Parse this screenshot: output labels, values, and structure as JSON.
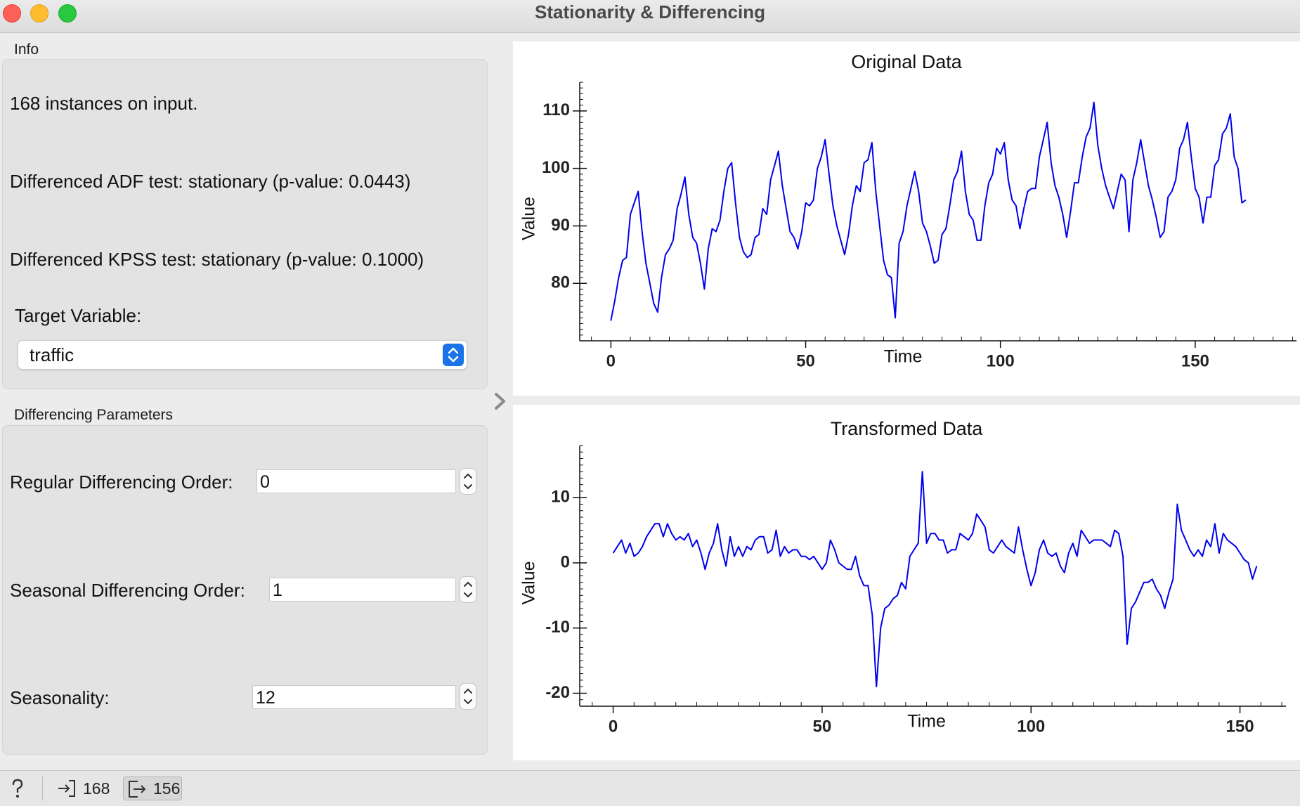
{
  "window": {
    "title": "Stationarity & Differencing"
  },
  "info": {
    "group_label": "Info",
    "instances": "168 instances on input.",
    "adf": "Differenced ADF test: stationary (p-value: 0.0443)",
    "kpss": "Differenced KPSS test: stationary (p-value: 0.1000)",
    "target_label": "Target Variable:",
    "target_value": "traffic"
  },
  "differencing": {
    "group_label": "Differencing Parameters",
    "regular_label": "Regular Differencing Order:",
    "regular_value": "0",
    "seasonal_label": "Seasonal Differencing Order:",
    "seasonal_value": "1",
    "seasonality_label": "Seasonality:",
    "seasonality_value": "12"
  },
  "status": {
    "input_count": "168",
    "output_count": "156"
  },
  "icons": {
    "help": "question-mark-icon",
    "input": "input-arrow-icon",
    "output": "output-arrow-icon",
    "splitter": "chevron-right-icon",
    "combo": "updown-chevron-icon"
  },
  "colors": {
    "line": "#0000ee",
    "combo_accent": "#1a73e8"
  },
  "chart_data": [
    {
      "type": "line",
      "title": "Original Data",
      "xlabel": "Time",
      "ylabel": "Value",
      "xticks": [
        0,
        50,
        100,
        150
      ],
      "yticks": [
        80,
        90,
        100,
        110
      ],
      "xlim": [
        -8,
        176
      ],
      "ylim": [
        70,
        115
      ],
      "series": [
        {
          "values": [
            73.5,
            77,
            81,
            84,
            84.5,
            92,
            94,
            96,
            89,
            83.5,
            80,
            76.5,
            75,
            81,
            85,
            86,
            87.5,
            93,
            95.5,
            98.5,
            92,
            88,
            87,
            83.5,
            79,
            86,
            89.5,
            89,
            91,
            96,
            100,
            101,
            94,
            88,
            85.5,
            84.5,
            85,
            88,
            88.5,
            93,
            92,
            98,
            100.5,
            103,
            97,
            93,
            89,
            88,
            86,
            89,
            94,
            93.5,
            94.5,
            100,
            102,
            105,
            99,
            93.5,
            90,
            87.5,
            85,
            88.5,
            93.5,
            97,
            96,
            101,
            101.5,
            104.5,
            96,
            90,
            84,
            81.5,
            81,
            74,
            87,
            89,
            93.5,
            96.5,
            99.5,
            96,
            90.5,
            89,
            86.5,
            83.5,
            84,
            88.5,
            89.5,
            93.5,
            98,
            99.5,
            103,
            96,
            92,
            91,
            87.5,
            87.5,
            93.5,
            97.5,
            99,
            103.5,
            102.5,
            104.5,
            98,
            94.5,
            93.5,
            89.5,
            93,
            96,
            96.5,
            96.5,
            102,
            105,
            108,
            101,
            97,
            95,
            92,
            88,
            92.5,
            97.5,
            97.5,
            102,
            105.5,
            107,
            111.5,
            104,
            100,
            97,
            95,
            93,
            96,
            99,
            98,
            89,
            98,
            101,
            105,
            101,
            97,
            94.5,
            91.5,
            88,
            89,
            95,
            96,
            98,
            103.5,
            105,
            108,
            102,
            96.5,
            95,
            90.5,
            95,
            95,
            100.5,
            101.5,
            106,
            107,
            109.5,
            102,
            100,
            94,
            94.5
          ]
        }
      ]
    },
    {
      "type": "line",
      "title": "Transformed Data",
      "xlabel": "Time",
      "ylabel": "Value",
      "xticks": [
        0,
        50,
        100,
        150
      ],
      "yticks": [
        -20,
        -10,
        0,
        10
      ],
      "xlim": [
        -8,
        161
      ],
      "ylim": [
        -22,
        18
      ],
      "series": [
        {
          "values": [
            1.5,
            2.5,
            3.5,
            1.5,
            3,
            1,
            1.5,
            2.5,
            4,
            5,
            6,
            6,
            4,
            6,
            4.5,
            3.5,
            4,
            3.5,
            4.5,
            2.5,
            3.5,
            1.5,
            -1,
            1.5,
            3,
            6,
            2,
            -0.5,
            4,
            1,
            2.5,
            1,
            2.5,
            2,
            3.5,
            4,
            4,
            1.5,
            2,
            5,
            1,
            2.5,
            1.5,
            2,
            2,
            1,
            1,
            0.5,
            1,
            0,
            -1,
            0,
            3.5,
            2,
            0,
            -0.5,
            -1,
            -1,
            1,
            -2,
            -3.5,
            -3.5,
            -8,
            -19,
            -10,
            -7,
            -6.5,
            -5.5,
            -5,
            -3,
            -4,
            1,
            2,
            3,
            14,
            3,
            4.5,
            4.5,
            3.5,
            3.5,
            1.5,
            2,
            2,
            4.5,
            4,
            3.5,
            4.5,
            7.5,
            6.5,
            5.5,
            2,
            1.5,
            2.5,
            3.5,
            2.5,
            2,
            1.5,
            5.5,
            2,
            -1,
            -3.5,
            -1.5,
            2,
            3.5,
            1.5,
            1,
            1.5,
            -0.5,
            -1.5,
            1.5,
            3,
            1,
            5,
            4,
            3,
            3.5,
            3.5,
            3.5,
            3,
            2.5,
            5,
            4.5,
            1,
            -12.5,
            -7,
            -6,
            -4.5,
            -3,
            -3,
            -2.5,
            -4,
            -5,
            -7,
            -4.5,
            -2.5,
            9,
            5,
            3.5,
            2,
            1,
            2,
            1,
            3.5,
            2.5,
            6,
            1.5,
            4.5,
            3.5,
            3,
            2.5,
            1.5,
            0.5,
            0,
            -2.5,
            -0.5
          ]
        }
      ]
    }
  ]
}
